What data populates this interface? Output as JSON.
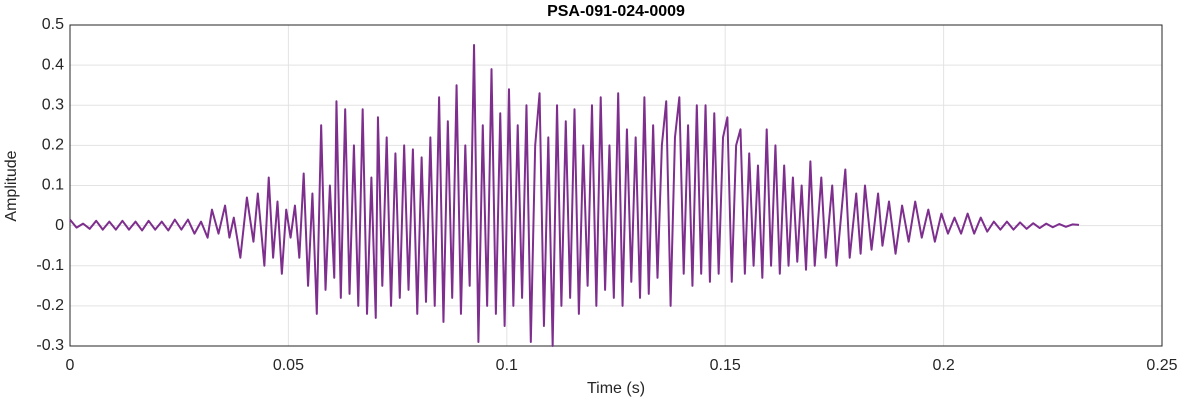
{
  "chart_data": {
    "type": "line",
    "title": "PSA-091-024-0009",
    "xlabel": "Time (s)",
    "ylabel": "Amplitude",
    "xlim": [
      0,
      0.25
    ],
    "xticks": [
      0,
      0.05,
      0.1,
      0.15,
      0.2,
      0.25
    ],
    "ylim": [
      -0.3,
      0.5
    ],
    "yticks": [
      -0.3,
      -0.2,
      -0.1,
      0,
      0.1,
      0.2,
      0.3,
      0.4,
      0.5
    ],
    "grid": true,
    "x": [
      0,
      0.0015,
      0.003,
      0.0045,
      0.006,
      0.0075,
      0.009,
      0.0105,
      0.012,
      0.0135,
      0.015,
      0.0165,
      0.018,
      0.0195,
      0.021,
      0.0225,
      0.024,
      0.0255,
      0.027,
      0.0285,
      0.03,
      0.0315,
      0.0325,
      0.034,
      0.0355,
      0.0365,
      0.0375,
      0.039,
      0.0405,
      0.042,
      0.043,
      0.0445,
      0.0455,
      0.0465,
      0.0475,
      0.0485,
      0.0495,
      0.0505,
      0.0515,
      0.0525,
      0.0535,
      0.0545,
      0.0555,
      0.0565,
      0.0575,
      0.0585,
      0.0595,
      0.0605,
      0.061,
      0.062,
      0.063,
      0.064,
      0.065,
      0.066,
      0.067,
      0.068,
      0.069,
      0.07,
      0.0705,
      0.0715,
      0.0725,
      0.0735,
      0.0745,
      0.0755,
      0.0765,
      0.0775,
      0.0785,
      0.0795,
      0.0805,
      0.0815,
      0.0825,
      0.0835,
      0.0845,
      0.0855,
      0.0865,
      0.0875,
      0.0885,
      0.0895,
      0.0905,
      0.0915,
      0.0925,
      0.0935,
      0.0945,
      0.0955,
      0.0965,
      0.0975,
      0.0985,
      0.0995,
      0.1005,
      0.1015,
      0.1025,
      0.1035,
      0.1045,
      0.1055,
      0.1065,
      0.1075,
      0.1085,
      0.1095,
      0.1105,
      0.1115,
      0.1125,
      0.1135,
      0.1145,
      0.1155,
      0.1165,
      0.1175,
      0.1185,
      0.1195,
      0.1205,
      0.1215,
      0.1225,
      0.1235,
      0.1245,
      0.1255,
      0.1265,
      0.1275,
      0.1285,
      0.1295,
      0.1305,
      0.1315,
      0.1325,
      0.1335,
      0.1345,
      0.1355,
      0.1365,
      0.1375,
      0.1385,
      0.1395,
      0.1405,
      0.1415,
      0.1425,
      0.1435,
      0.1445,
      0.1455,
      0.1465,
      0.1475,
      0.1485,
      0.1495,
      0.1505,
      0.1515,
      0.1525,
      0.1535,
      0.1545,
      0.1555,
      0.1565,
      0.1575,
      0.1585,
      0.1595,
      0.1605,
      0.1615,
      0.1625,
      0.1635,
      0.1645,
      0.1655,
      0.1665,
      0.1675,
      0.1685,
      0.1695,
      0.1705,
      0.172,
      0.173,
      0.1745,
      0.1755,
      0.1775,
      0.1785,
      0.18,
      0.181,
      0.182,
      0.1835,
      0.185,
      0.186,
      0.1875,
      0.189,
      0.1905,
      0.192,
      0.1935,
      0.195,
      0.1965,
      0.198,
      0.1995,
      0.201,
      0.2025,
      0.204,
      0.2055,
      0.207,
      0.2085,
      0.21,
      0.2115,
      0.213,
      0.2145,
      0.216,
      0.2175,
      0.219,
      0.2205,
      0.222,
      0.2235,
      0.225,
      0.2265,
      0.228,
      0.2295,
      0.231
    ],
    "series": [
      {
        "name": "Amplitude",
        "color": "#7e2f8e",
        "values": [
          0.015,
          -0.005,
          0.005,
          -0.008,
          0.012,
          -0.01,
          0.01,
          -0.01,
          0.012,
          -0.01,
          0.01,
          -0.012,
          0.012,
          -0.01,
          0.01,
          -0.012,
          0.015,
          -0.01,
          0.015,
          -0.02,
          0.01,
          -0.03,
          0.04,
          -0.02,
          0.05,
          -0.03,
          0.02,
          -0.08,
          0.07,
          -0.04,
          0.08,
          -0.1,
          0.12,
          -0.08,
          0.06,
          -0.12,
          0.04,
          -0.03,
          0.05,
          -0.08,
          0.13,
          -0.15,
          0.08,
          -0.22,
          0.25,
          -0.16,
          0.1,
          -0.13,
          0.31,
          -0.18,
          0.29,
          -0.17,
          0.2,
          -0.2,
          0.29,
          -0.22,
          0.12,
          -0.23,
          0.27,
          -0.15,
          0.22,
          -0.2,
          0.18,
          -0.18,
          0.2,
          -0.16,
          0.19,
          -0.22,
          0.17,
          -0.19,
          0.22,
          -0.2,
          0.32,
          -0.24,
          0.26,
          -0.18,
          0.35,
          -0.22,
          0.2,
          -0.15,
          0.45,
          -0.29,
          0.25,
          -0.2,
          0.39,
          -0.22,
          0.28,
          -0.25,
          0.34,
          -0.2,
          0.25,
          -0.18,
          0.3,
          -0.29,
          0.2,
          0.33,
          -0.25,
          0.22,
          -0.3,
          0.3,
          -0.2,
          0.26,
          -0.18,
          0.29,
          -0.22,
          0.2,
          -0.15,
          0.3,
          -0.2,
          0.32,
          -0.16,
          0.2,
          -0.18,
          0.33,
          -0.2,
          0.24,
          -0.14,
          0.22,
          -0.18,
          0.32,
          -0.17,
          0.25,
          -0.13,
          0.2,
          0.31,
          -0.2,
          0.22,
          0.32,
          -0.12,
          0.25,
          -0.15,
          0.3,
          -0.12,
          0.3,
          -0.14,
          0.28,
          -0.12,
          0.22,
          0.27,
          -0.14,
          0.2,
          0.24,
          -0.12,
          0.18,
          -0.1,
          0.15,
          -0.13,
          0.24,
          -0.1,
          0.2,
          -0.12,
          0.15,
          -0.1,
          0.12,
          -0.09,
          0.1,
          -0.11,
          0.16,
          -0.1,
          0.12,
          -0.08,
          0.1,
          -0.1,
          0.14,
          -0.08,
          0.08,
          -0.07,
          0.1,
          -0.06,
          0.08,
          -0.05,
          0.06,
          -0.07,
          0.05,
          -0.04,
          0.06,
          -0.03,
          0.04,
          -0.04,
          0.03,
          -0.02,
          0.02,
          -0.02,
          0.03,
          -0.02,
          0.02,
          -0.015,
          0.01,
          -0.01,
          0.01,
          -0.01,
          0.008,
          -0.008,
          0.006,
          -0.006,
          0.005,
          -0.004,
          0.004,
          -0.003,
          0.003,
          0.002
        ]
      }
    ]
  }
}
